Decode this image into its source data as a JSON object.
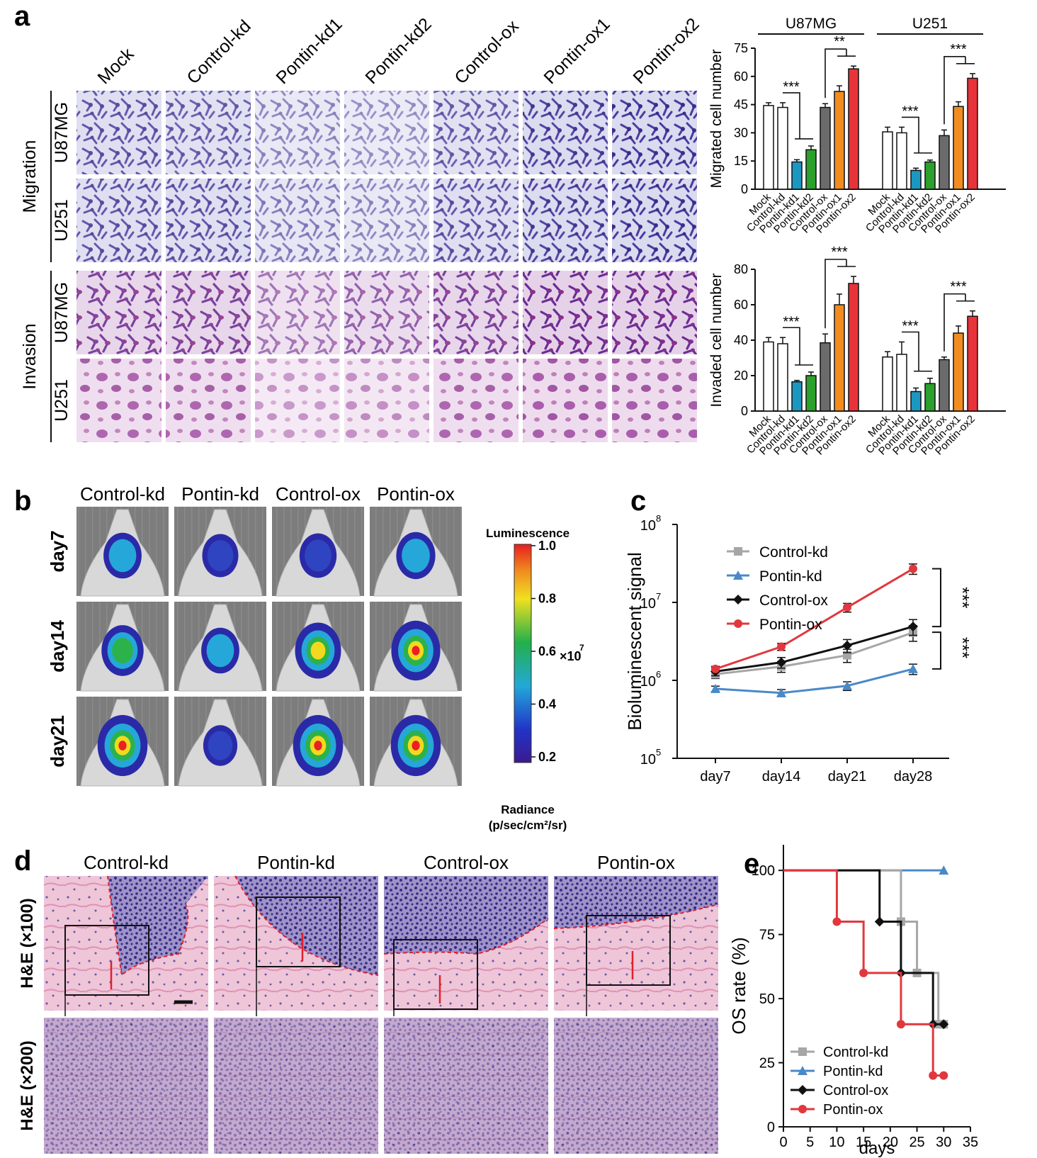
{
  "panel_labels": {
    "a": "a",
    "b": "b",
    "c": "c",
    "d": "d",
    "e": "e"
  },
  "panel_a": {
    "column_labels": [
      "Mock",
      "Control-kd",
      "Pontin-kd1",
      "Pontin-kd2",
      "Control-ox",
      "Pontin-ox1",
      "Pontin-ox2"
    ],
    "groups": [
      {
        "label": "Migration",
        "rows": [
          "U87MG",
          "U251"
        ]
      },
      {
        "label": "Invasion",
        "rows": [
          "U87MG",
          "U251"
        ]
      }
    ],
    "tints": {
      "Migration": {
        "bg": "#dcdff0",
        "cell": "#4b3a9c"
      },
      "Invasion": {
        "bg": "#e5d2e6",
        "cell": "#7a2b8f"
      }
    }
  },
  "colors": {
    "white": "#ffffff",
    "cyan": "#1c98c0",
    "green": "#2ca02c",
    "gray": "#6b6b6b",
    "orange": "#f28c20",
    "red": "#e8333a",
    "ctrl_kd": "#a6a6a6",
    "pontin_kd": "#4a89c8",
    "ctrl_ox": "#111111",
    "pontin_ox": "#e0383e"
  },
  "chart_data": [
    {
      "id": "migration-bar",
      "type": "bar",
      "ylabel": "Migrated cell number",
      "ylim": [
        0,
        75
      ],
      "yticks": [
        0,
        15,
        30,
        45,
        60,
        75
      ],
      "categories": [
        "Mock",
        "Control-kd",
        "Pontin-kd1",
        "Pontin-kd2",
        "Control-ox",
        "Pontin-ox1",
        "Pontin-ox2"
      ],
      "groups": [
        {
          "name": "U87MG",
          "values": [
            44.5,
            43.5,
            14.5,
            21,
            43.5,
            52,
            64
          ],
          "errors": [
            1.5,
            2.5,
            1.2,
            2,
            2,
            3,
            1.5
          ]
        },
        {
          "name": "U251",
          "values": [
            30.5,
            30,
            10,
            14.5,
            28.5,
            44,
            59
          ],
          "errors": [
            2.5,
            3,
            1.2,
            1,
            3,
            2.5,
            2.5
          ]
        }
      ],
      "significance": [
        {
          "group": "U87MG",
          "label": "***"
        },
        {
          "group": "U87MG",
          "label": "**"
        },
        {
          "group": "U251",
          "label": "***"
        },
        {
          "group": "U251",
          "label": "***"
        }
      ]
    },
    {
      "id": "invasion-bar",
      "type": "bar",
      "ylabel": "Invaded cell number",
      "ylim": [
        0,
        80
      ],
      "yticks": [
        0,
        20,
        40,
        60,
        80
      ],
      "categories": [
        "Mock",
        "Control-kd",
        "Pontin-kd1",
        "Pontin-kd2",
        "Control-ox",
        "Pontin-ox1",
        "Pontin-ox2"
      ],
      "groups": [
        {
          "name": "U87MG",
          "values": [
            39,
            38,
            16.5,
            20,
            38.5,
            60,
            72
          ],
          "errors": [
            2.5,
            3.5,
            0.8,
            2,
            5,
            6,
            4
          ]
        },
        {
          "name": "U251",
          "values": [
            30.5,
            32,
            11,
            15.5,
            29,
            44,
            53.5
          ],
          "errors": [
            3,
            7,
            2,
            3,
            1.5,
            4,
            3
          ]
        }
      ],
      "significance": [
        {
          "group": "U87MG",
          "label": "***"
        },
        {
          "group": "U87MG",
          "label": "***"
        },
        {
          "group": "U251",
          "label": "***"
        },
        {
          "group": "U251",
          "label": "***"
        }
      ]
    },
    {
      "id": "bioluminescence-line",
      "type": "line",
      "yscale": "log",
      "ylabel": "Bioluminescent signal",
      "ytick_labels": [
        "10",
        "10",
        "10",
        "10"
      ],
      "ytick_exponents": [
        "5",
        "6",
        "7",
        "8"
      ],
      "ylim": [
        100000,
        100000000
      ],
      "x": [
        "day7",
        "day14",
        "day21",
        "day28"
      ],
      "series": [
        {
          "name": "Control-kd",
          "marker": "square",
          "values": [
            1200000,
            1500000,
            2100000,
            4100000
          ]
        },
        {
          "name": "Pontin-kd",
          "marker": "triangle",
          "values": [
            780000,
            690000,
            850000,
            1400000
          ]
        },
        {
          "name": "Control-ox",
          "marker": "diamond",
          "values": [
            1300000,
            1700000,
            2800000,
            4900000
          ]
        },
        {
          "name": "Pontin-ox",
          "marker": "circle",
          "values": [
            1400000,
            2700000,
            8600000,
            27000000
          ]
        }
      ],
      "significance": [
        "***",
        "***"
      ]
    },
    {
      "id": "os-survival",
      "type": "line",
      "ylabel": "OS rate (%)",
      "xlabel": "days",
      "xlim": [
        0,
        35
      ],
      "ylim": [
        0,
        110
      ],
      "xticks": [
        0,
        5,
        10,
        15,
        20,
        25,
        30,
        35
      ],
      "yticks": [
        0,
        25,
        50,
        75,
        100
      ],
      "series": [
        {
          "name": "Control-kd",
          "marker": "square",
          "points": [
            [
              0,
              100
            ],
            [
              22,
              100
            ],
            [
              22,
              80
            ],
            [
              25,
              80
            ],
            [
              25,
              60
            ],
            [
              29,
              60
            ],
            [
              29,
              40
            ],
            [
              30,
              40
            ]
          ],
          "markers": [
            [
              22,
              80
            ],
            [
              25,
              60
            ],
            [
              29,
              40
            ],
            [
              30,
              40
            ]
          ]
        },
        {
          "name": "Pontin-kd",
          "marker": "triangle",
          "points": [
            [
              0,
              100
            ],
            [
              30,
              100
            ]
          ],
          "markers": [
            [
              30,
              100
            ]
          ]
        },
        {
          "name": "Control-ox",
          "marker": "diamond",
          "points": [
            [
              0,
              100
            ],
            [
              18,
              100
            ],
            [
              18,
              80
            ],
            [
              22,
              80
            ],
            [
              22,
              60
            ],
            [
              28,
              60
            ],
            [
              28,
              40
            ],
            [
              30,
              40
            ]
          ],
          "markers": [
            [
              18,
              80
            ],
            [
              22,
              60
            ],
            [
              28,
              40
            ],
            [
              30,
              40
            ]
          ]
        },
        {
          "name": "Pontin-ox",
          "marker": "circle",
          "points": [
            [
              0,
              100
            ],
            [
              10,
              100
            ],
            [
              10,
              80
            ],
            [
              15,
              80
            ],
            [
              15,
              60
            ],
            [
              22,
              60
            ],
            [
              22,
              40
            ],
            [
              28,
              40
            ],
            [
              28,
              20
            ],
            [
              30,
              20
            ]
          ],
          "markers": [
            [
              10,
              80
            ],
            [
              15,
              60
            ],
            [
              22,
              40
            ],
            [
              28,
              20
            ],
            [
              30,
              20
            ]
          ]
        }
      ]
    }
  ],
  "panel_b": {
    "column_labels": [
      "Control-kd",
      "Pontin-kd",
      "Control-ox",
      "Pontin-ox"
    ],
    "row_labels": [
      "day7",
      "day14",
      "day21"
    ],
    "colorbar": {
      "title": "Luminescence",
      "tick_labels": [
        "1.0",
        "0.8",
        "0.6",
        "0.4",
        "0.2"
      ],
      "multiplier": "×10",
      "multiplier_exp": "7",
      "footer_line1": "Radiance",
      "footer_line2": "(p/sec/cm²/sr)"
    },
    "intensity": [
      [
        0.35,
        0.25,
        0.3,
        0.4
      ],
      [
        0.55,
        0.35,
        0.75,
        0.9
      ],
      [
        0.95,
        0.15,
        0.95,
        0.95
      ]
    ]
  },
  "panel_d": {
    "column_labels": [
      "Control-kd",
      "Pontin-kd",
      "Control-ox",
      "Pontin-ox"
    ],
    "row_labels": [
      "H&E (×100)",
      "H&E (×200)"
    ]
  }
}
